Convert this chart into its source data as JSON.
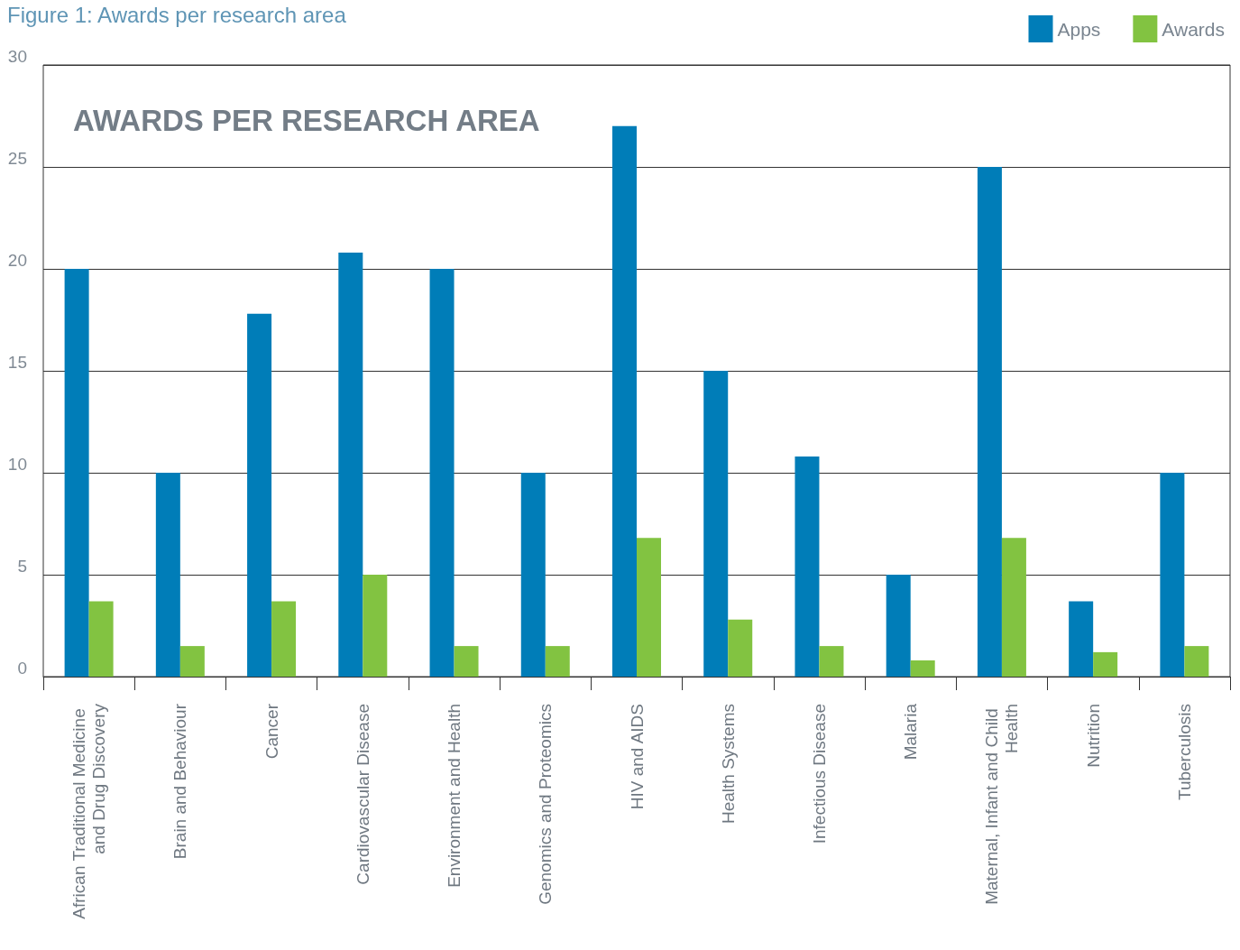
{
  "chart_data": {
    "type": "bar",
    "title": "AWARDS PER RESEARCH AREA",
    "annotations": [
      "Figure 1: Awards per research area"
    ],
    "categories": [
      "African Traditional Medicine and Drug Discovery",
      "Brain and Behaviour",
      "Cancer",
      "Cardiovascular Disease",
      "Environment and Health",
      "Genomics and Proteomics",
      "HIV and AIDS",
      "Health Systems",
      "Infectious Disease",
      "Malaria",
      "Maternal, Infant and Child Health",
      "Nutrition",
      "Tuberculosis"
    ],
    "series": [
      {
        "name": "Apps",
        "color": "#007db8",
        "values": [
          20,
          10,
          17.8,
          20.8,
          20,
          10,
          27,
          15,
          10.8,
          5,
          25,
          3.7,
          10
        ]
      },
      {
        "name": "Awards",
        "color": "#82c341",
        "values": [
          3.7,
          1.5,
          3.7,
          5,
          1.5,
          1.5,
          6.8,
          2.8,
          1.5,
          0.8,
          6.8,
          1.2,
          1.5
        ]
      }
    ],
    "ylim": [
      0,
      30
    ],
    "yticks": [
      0,
      5,
      10,
      15,
      20,
      25,
      30
    ],
    "grid": "y",
    "legend": "top right"
  }
}
